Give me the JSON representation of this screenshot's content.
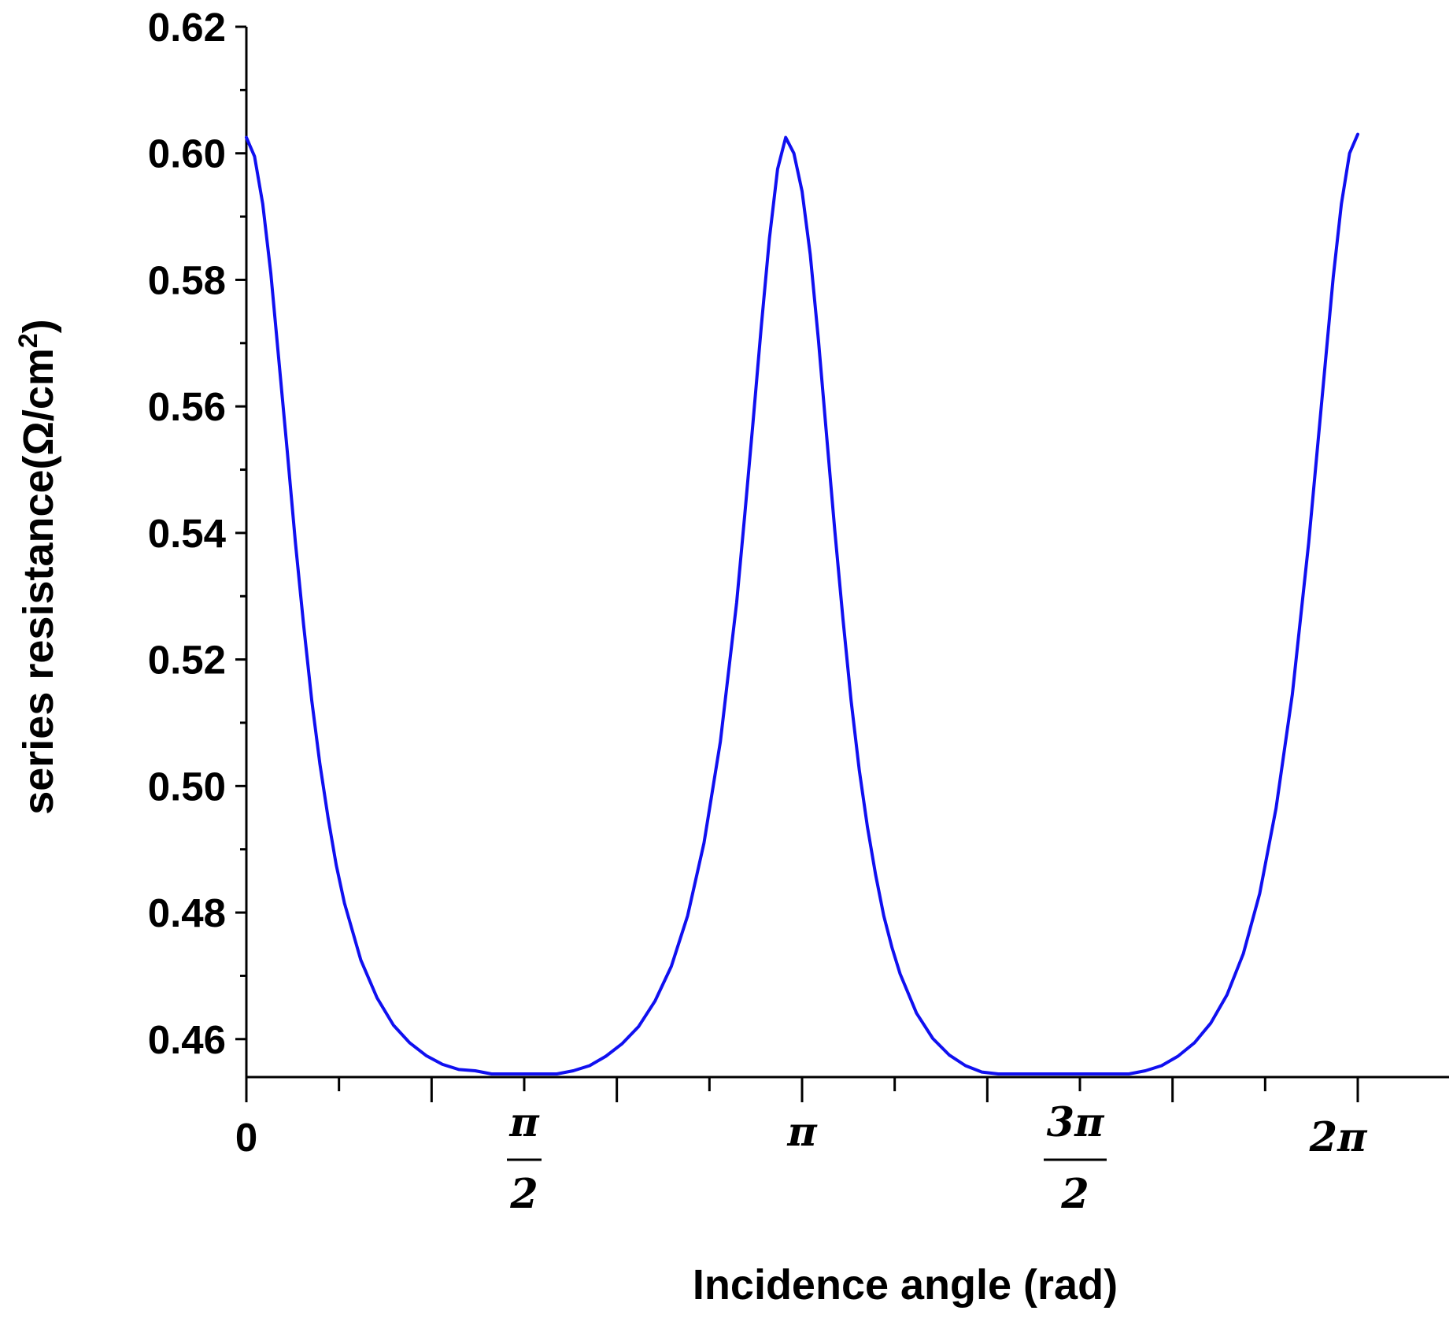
{
  "chart_data": {
    "type": "line",
    "title": "",
    "xlabel": "Incidence angle (rad)",
    "ylabel_main": "series resistance(Ω/cm",
    "ylabel_sup": "2",
    "ylabel_close": ")",
    "xlim": [
      0,
      6.8
    ],
    "ylim": [
      0.454,
      0.62
    ],
    "grid": false,
    "legend": "none",
    "line_color": "#1010f0",
    "y_ticks": [
      {
        "value": 0.46,
        "label": "0.46"
      },
      {
        "value": 0.48,
        "label": "0.48"
      },
      {
        "value": 0.5,
        "label": "0.50"
      },
      {
        "value": 0.52,
        "label": "0.52"
      },
      {
        "value": 0.54,
        "label": "0.54"
      },
      {
        "value": 0.56,
        "label": "0.56"
      },
      {
        "value": 0.58,
        "label": "0.58"
      },
      {
        "value": 0.6,
        "label": "0.60"
      },
      {
        "value": 0.62,
        "label": "0.62"
      }
    ],
    "y_minor_ticks": [
      0.47,
      0.49,
      0.51,
      0.53,
      0.55,
      0.57,
      0.59,
      0.61
    ],
    "x_major_ticks": [
      0,
      1.1333,
      2.2667,
      3.4,
      4.5333,
      5.6667,
      6.8
    ],
    "x_minor_ticks": [
      0.5667,
      1.7,
      2.8333,
      3.9667,
      5.1,
      6.2333
    ],
    "x_tick_labels": {
      "zero": {
        "value": 0,
        "text": "0"
      },
      "half_pi": {
        "value": 1.7,
        "num": "π",
        "den": "2"
      },
      "pi": {
        "value": 3.4,
        "text": "π"
      },
      "three_half_pi": {
        "value": 5.1,
        "num": "3π",
        "den": "2"
      },
      "two_pi": {
        "value": 6.8,
        "text": "2π"
      }
    },
    "series": [
      {
        "x": [
          0,
          0.05,
          0.1,
          0.15,
          0.2,
          0.25,
          0.3,
          0.35,
          0.4,
          0.45,
          0.5,
          0.55,
          0.6,
          0.7,
          0.8,
          0.9,
          1.0,
          1.1,
          1.2,
          1.3,
          1.4,
          1.5,
          1.6,
          1.7,
          1.8,
          1.9,
          2.0,
          2.1,
          2.2,
          2.3,
          2.4,
          2.5,
          2.6,
          2.7,
          2.8,
          2.9,
          3.0,
          3.05,
          3.1,
          3.15,
          3.2,
          3.25,
          3.3,
          3.35,
          3.4,
          3.45,
          3.5,
          3.55,
          3.6,
          3.65,
          3.7,
          3.75,
          3.8,
          3.85,
          3.9,
          3.95,
          4.0,
          4.1,
          4.2,
          4.3,
          4.4,
          4.5,
          4.6,
          4.7,
          4.8,
          4.9,
          5.0,
          5.1,
          5.2,
          5.3,
          5.4,
          5.5,
          5.6,
          5.7,
          5.8,
          5.9,
          6.0,
          6.1,
          6.2,
          6.3,
          6.4,
          6.5,
          6.55,
          6.6,
          6.65,
          6.7,
          6.75,
          6.8
        ],
        "y": [
          0.6025,
          0.5995,
          0.592,
          0.581,
          0.567,
          0.553,
          0.5385,
          0.5255,
          0.5135,
          0.5035,
          0.495,
          0.4875,
          0.4815,
          0.4725,
          0.4665,
          0.4622,
          0.4594,
          0.4574,
          0.456,
          0.4552,
          0.455,
          0.4545,
          0.4545,
          0.4545,
          0.4545,
          0.4545,
          0.455,
          0.4558,
          0.4573,
          0.4593,
          0.462,
          0.466,
          0.4715,
          0.4795,
          0.491,
          0.507,
          0.529,
          0.543,
          0.5575,
          0.5725,
          0.5865,
          0.5975,
          0.6025,
          0.6,
          0.594,
          0.584,
          0.5705,
          0.5555,
          0.5405,
          0.5265,
          0.5135,
          0.5025,
          0.4935,
          0.486,
          0.4795,
          0.4745,
          0.4703,
          0.4641,
          0.4601,
          0.4575,
          0.4558,
          0.4548,
          0.4545,
          0.4545,
          0.4545,
          0.4545,
          0.4545,
          0.4545,
          0.4545,
          0.4545,
          0.4545,
          0.455,
          0.4558,
          0.4573,
          0.4594,
          0.4625,
          0.467,
          0.4735,
          0.483,
          0.4965,
          0.5145,
          0.5385,
          0.5525,
          0.5665,
          0.5805,
          0.592,
          0.6,
          0.603
        ]
      }
    ]
  }
}
